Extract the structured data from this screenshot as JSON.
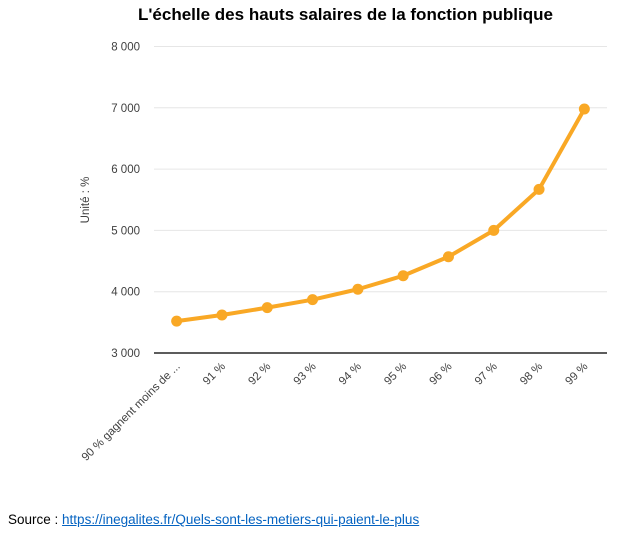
{
  "chart_data": {
    "type": "line",
    "title": "L'échelle des hauts salaires de la fonction publique",
    "categories": [
      "90 % gagnent moins de ...",
      "91 %",
      "92 %",
      "93 %",
      "94 %",
      "95 %",
      "96 %",
      "97 %",
      "98 %",
      "99 %"
    ],
    "values": [
      3520,
      3620,
      3740,
      3870,
      4040,
      4260,
      4570,
      5000,
      5670,
      6980
    ],
    "ylabel": "Unité : %",
    "xlabel": "",
    "ylim": [
      3000,
      8000
    ],
    "yticks": [
      3000,
      4000,
      5000,
      6000,
      7000,
      8000
    ],
    "ytick_labels": [
      "3 000",
      "4 000",
      "5 000",
      "6 000",
      "7 000",
      "8 000"
    ],
    "grid": true,
    "legend": "none",
    "line_color": "#F9A825",
    "marker": "circle"
  },
  "colors": {
    "grid": "#E6E6E6",
    "axis": "#262626",
    "tick_text": "#404040",
    "link": "#0563C1"
  },
  "source": {
    "label": "Source :",
    "link_text": "https://inegalites.fr/Quels-sont-les-metiers-qui-paient-le-plus"
  }
}
